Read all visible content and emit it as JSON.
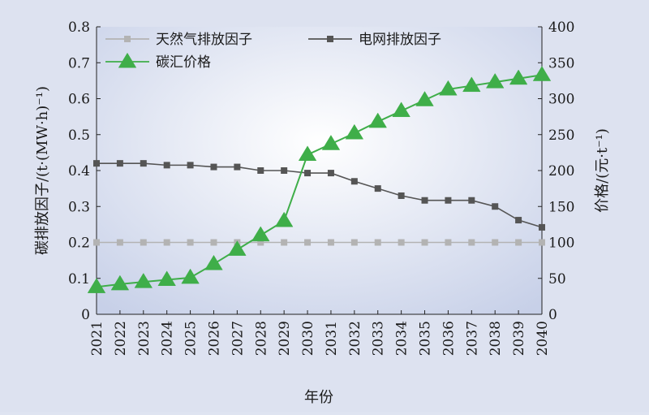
{
  "chart_data": {
    "type": "line",
    "title": "",
    "xlabel": "年份",
    "ylabel_left": "碳排放因子/(t·(MW·h)⁻¹)",
    "ylabel_right": "价格/(元·t⁻¹)",
    "x": [
      "2021",
      "2022",
      "2023",
      "2024",
      "2025",
      "2026",
      "2027",
      "2028",
      "2029",
      "2030",
      "2031",
      "2032",
      "2033",
      "2034",
      "2035",
      "2036",
      "2037",
      "2038",
      "2039",
      "2040"
    ],
    "ylim_left": [
      0,
      0.8
    ],
    "ylim_right": [
      0,
      400
    ],
    "yticks_left": [
      "0",
      "0.1",
      "0.2",
      "0.3",
      "0.4",
      "0.5",
      "0.6",
      "0.7",
      "0.8"
    ],
    "yticks_right": [
      "0",
      "50",
      "100",
      "150",
      "200",
      "250",
      "300",
      "350",
      "400"
    ],
    "grid": false,
    "legend_position": "top-left",
    "series": [
      {
        "name": "天然气排放因子",
        "axis": "left",
        "color": "#b3b3b3",
        "marker": "square",
        "values": [
          0.2,
          0.2,
          0.2,
          0.2,
          0.2,
          0.2,
          0.2,
          0.2,
          0.2,
          0.2,
          0.2,
          0.2,
          0.2,
          0.2,
          0.2,
          0.2,
          0.2,
          0.2,
          0.2,
          0.2
        ]
      },
      {
        "name": "电网排放因子",
        "axis": "left",
        "color": "#555555",
        "marker": "square",
        "values": [
          0.42,
          0.42,
          0.42,
          0.415,
          0.415,
          0.41,
          0.41,
          0.4,
          0.4,
          0.393,
          0.393,
          0.37,
          0.35,
          0.33,
          0.317,
          0.317,
          0.317,
          0.3,
          0.262,
          0.242
        ]
      },
      {
        "name": "碳汇价格",
        "axis": "right",
        "color": "#3fae49",
        "marker": "triangle",
        "values": [
          38,
          42,
          45,
          48,
          51,
          70,
          90,
          110,
          130,
          222,
          237,
          252,
          268,
          283,
          298,
          313,
          318,
          323,
          328,
          333
        ]
      }
    ]
  }
}
